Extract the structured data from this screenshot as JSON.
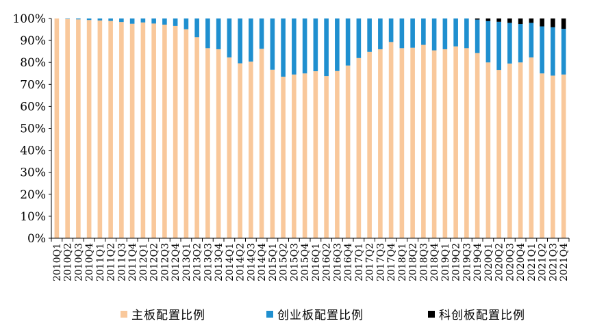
{
  "chart_data": {
    "type": "bar",
    "stacked": true,
    "categories": [
      "2010Q1",
      "2010Q2",
      "2010Q3",
      "2010Q4",
      "2011Q1",
      "2011Q2",
      "2011Q3",
      "2011Q4",
      "2012Q1",
      "2012Q2",
      "2012Q3",
      "2012Q4",
      "2013Q1",
      "2013Q2",
      "2013Q3",
      "2013Q4",
      "2014Q1",
      "2014Q2",
      "2014Q3",
      "2014Q4",
      "2015Q1",
      "2015Q2",
      "2015Q3",
      "2015Q4",
      "2016Q1",
      "2016Q2",
      "2016Q3",
      "2016Q4",
      "2017Q1",
      "2017Q2",
      "2017Q3",
      "2017Q4",
      "2018Q1",
      "2018Q2",
      "2018Q3",
      "2018Q4",
      "2019Q1",
      "2019Q2",
      "2019Q3",
      "2019Q4",
      "2020Q1",
      "2020Q2",
      "2020Q3",
      "2020Q4",
      "2021Q1",
      "2021Q2",
      "2021Q3",
      "2021Q4"
    ],
    "series": [
      {
        "name": "主板配置比例",
        "color": "#F9C89B",
        "values": [
          100,
          99.8,
          99.6,
          99.3,
          99.1,
          98.9,
          98.4,
          97.6,
          98.2,
          97.7,
          97.2,
          96.6,
          95.1,
          91.5,
          86.5,
          86,
          82.3,
          79.6,
          80.4,
          86.2,
          76.7,
          73.5,
          74.5,
          75,
          76,
          73.8,
          76.1,
          78.6,
          82,
          84.8,
          86,
          89.3,
          86.5,
          86.7,
          88,
          85.5,
          86,
          87.3,
          86.5,
          84.3,
          80,
          76.6,
          79.5,
          80,
          82.3,
          75,
          74,
          74.5
        ]
      },
      {
        "name": "创业板配置比例",
        "color": "#1F8FCF",
        "values": [
          0,
          0.2,
          0.4,
          0.7,
          0.9,
          1.1,
          1.6,
          2.4,
          1.8,
          2.3,
          2.8,
          3.4,
          4.9,
          8.5,
          13.5,
          14,
          17.7,
          20.4,
          19.6,
          13.8,
          23.3,
          26.5,
          25.5,
          25,
          24,
          26.2,
          23.9,
          21.4,
          18,
          15.2,
          14,
          10.7,
          13.5,
          13.3,
          12,
          14.5,
          14,
          12.7,
          13.5,
          15.2,
          18.8,
          21.9,
          18.5,
          17.5,
          15.7,
          21.4,
          22,
          20.8
        ]
      },
      {
        "name": "科创板配置比例",
        "color": "#000000",
        "values": [
          0,
          0,
          0,
          0,
          0,
          0,
          0,
          0,
          0,
          0,
          0,
          0,
          0,
          0,
          0,
          0,
          0,
          0,
          0,
          0,
          0,
          0,
          0,
          0,
          0,
          0,
          0,
          0,
          0,
          0,
          0,
          0,
          0,
          0,
          0,
          0,
          0,
          0,
          0,
          0.5,
          1.2,
          1.5,
          2,
          2.5,
          2,
          3.6,
          4,
          4.7
        ]
      }
    ],
    "y_ticks": [
      "0%",
      "10%",
      "20%",
      "30%",
      "40%",
      "50%",
      "60%",
      "70%",
      "80%",
      "90%",
      "100%"
    ],
    "ylim": [
      0,
      100
    ],
    "xlabel": "",
    "ylabel": "",
    "title": "",
    "grid": false,
    "legend_position": "bottom"
  }
}
